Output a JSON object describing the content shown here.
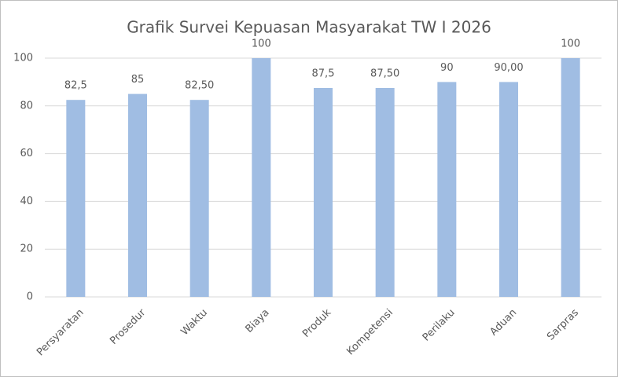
{
  "chart_data": {
    "type": "bar",
    "title": "Grafik Survei Kepuasan Masyarakat TW I 2026",
    "categories": [
      "Persyaratan",
      "Prosedur",
      "Waktu",
      "Biaya",
      "Produk",
      "Kompetensi",
      "Perilaku",
      "Aduan",
      "Sarpras"
    ],
    "values": [
      82.5,
      85,
      82.5,
      100,
      87.5,
      87.5,
      90,
      90,
      100
    ],
    "value_labels": [
      "82,5",
      "85",
      "82,50",
      "100",
      "87,5",
      "87,50",
      "90",
      "90,00",
      "100"
    ],
    "color": "#a0bde3",
    "ylim": [
      0,
      100
    ],
    "yticks": [
      0,
      20,
      40,
      60,
      80,
      100
    ],
    "grid": true
  }
}
